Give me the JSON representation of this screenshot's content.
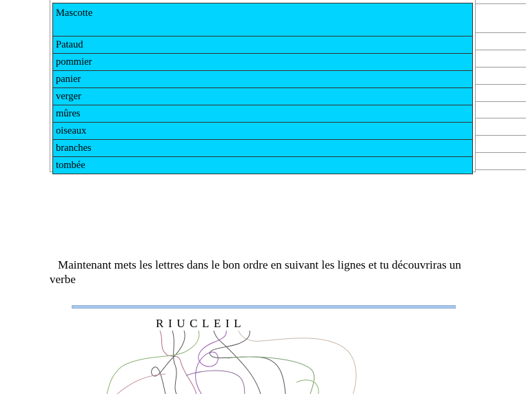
{
  "top_clipped_text": "                                  ",
  "word_rows": [
    "Mascotte",
    "Pataud",
    "pommier",
    "panier",
    "verger",
    "mûres",
    "oiseaux",
    "branches",
    "tombée"
  ],
  "instruction": "Maintenant mets les lettres dans le bon ordre en suivant les lignes et tu découvriras un verbe",
  "letters": [
    "R",
    "I",
    "U",
    "C",
    "L",
    "E",
    "I",
    "L"
  ],
  "colors": {
    "table_fill": "#00d4ff",
    "bar": "#a9c8ec"
  }
}
